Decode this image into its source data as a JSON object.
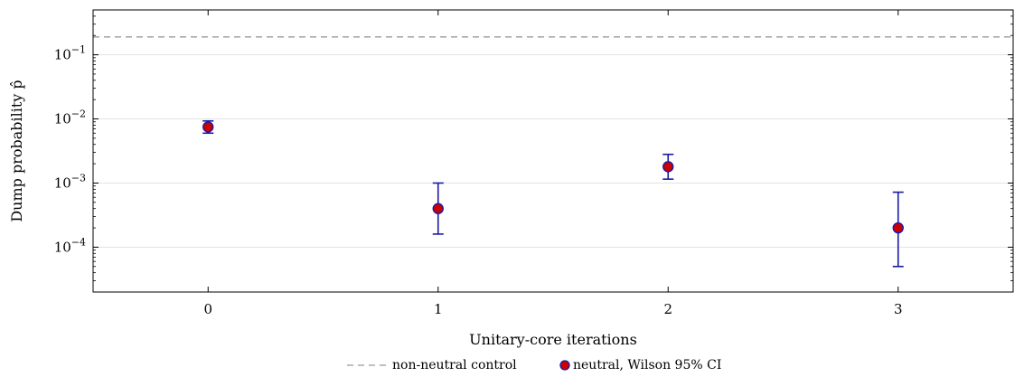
{
  "chart_data": {
    "type": "scatter",
    "xlabel": "Unitary-core iterations",
    "ylabel": "Dump probability p̂",
    "yscale": "log",
    "ylim": [
      2e-05,
      0.5
    ],
    "xlim": [
      -0.5,
      3.5
    ],
    "x_ticks": [
      {
        "value": 0,
        "label": "0"
      },
      {
        "value": 1,
        "label": "1"
      },
      {
        "value": 2,
        "label": "2"
      },
      {
        "value": 3,
        "label": "3"
      }
    ],
    "y_ticks": [
      {
        "value": 0.0001,
        "base": "10",
        "exp": "−4"
      },
      {
        "value": 0.001,
        "base": "10",
        "exp": "−3"
      },
      {
        "value": 0.01,
        "base": "10",
        "exp": "−2"
      },
      {
        "value": 0.1,
        "base": "10",
        "exp": "−1"
      }
    ],
    "grid": "horizontal",
    "series": [
      {
        "name": "neutral, Wilson 95% CI",
        "color": "#cc0000",
        "edge_color": "#1a1aa6",
        "error_color": "#1a1aa6",
        "points": [
          {
            "x": 0,
            "y": 0.0075,
            "lo": 0.006,
            "hi": 0.0093
          },
          {
            "x": 1,
            "y": 0.0004,
            "lo": 0.00016,
            "hi": 0.001
          },
          {
            "x": 2,
            "y": 0.0018,
            "lo": 0.00115,
            "hi": 0.0028
          },
          {
            "x": 3,
            "y": 0.0002,
            "lo": 5e-05,
            "hi": 0.00072
          }
        ]
      }
    ],
    "reference_lines": [
      {
        "name": "non-neutral control",
        "y": 0.19,
        "color": "#aaaaaa",
        "style": "dashed"
      }
    ],
    "legend": {
      "position": "bottom-center",
      "entries": [
        {
          "label": "non-neutral control",
          "kind": "dashed-line"
        },
        {
          "label": "neutral, Wilson 95% CI",
          "kind": "marker"
        }
      ]
    }
  }
}
